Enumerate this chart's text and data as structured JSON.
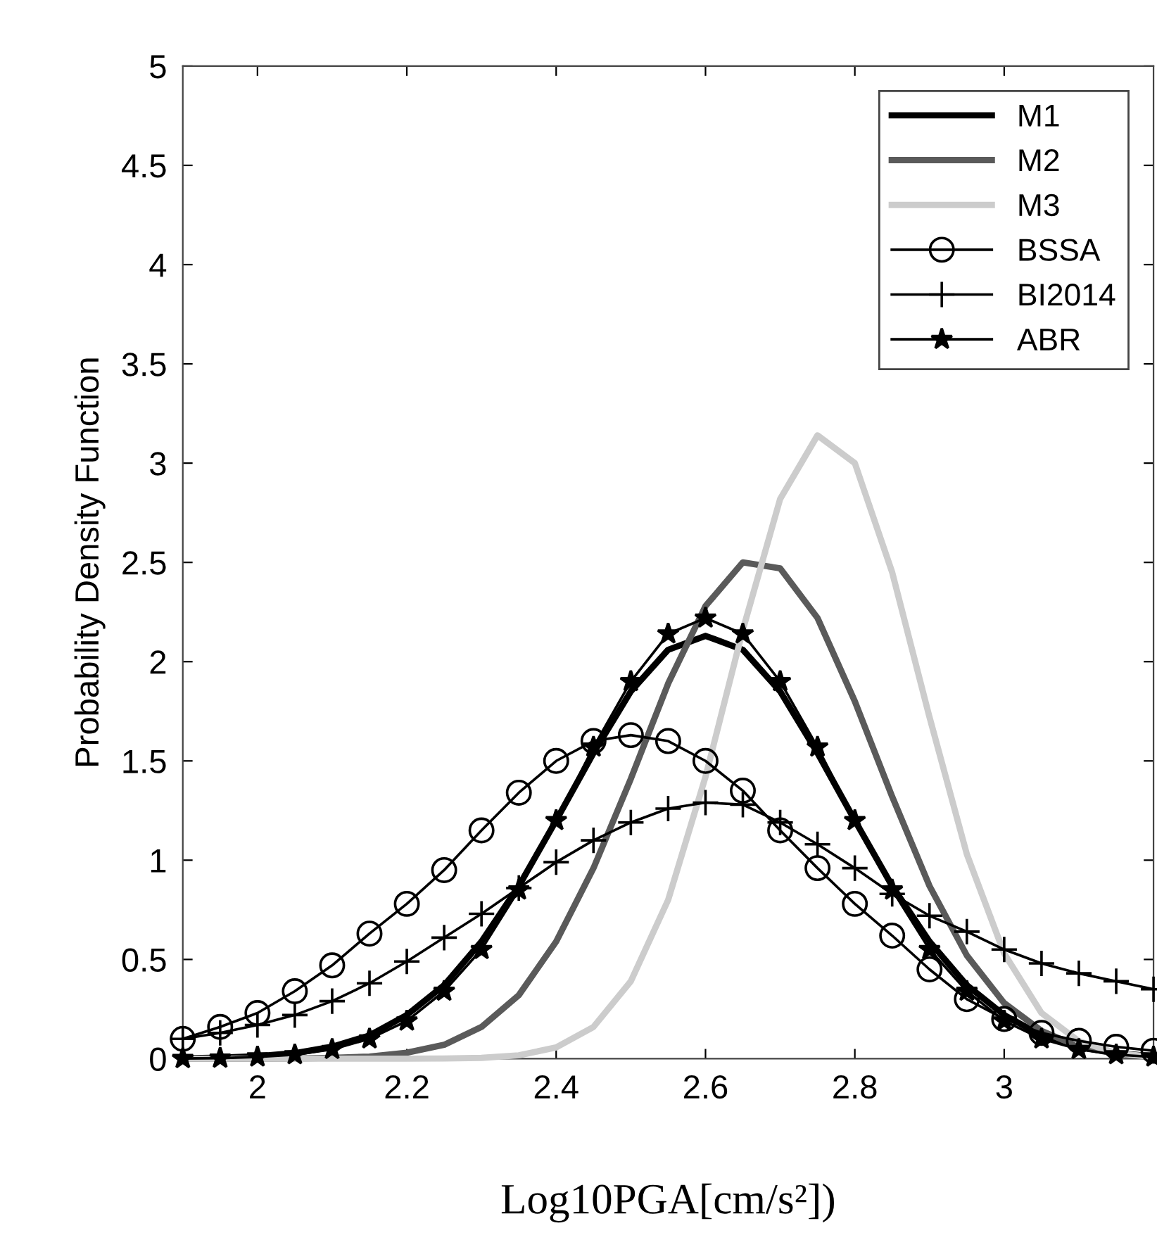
{
  "chart_data": {
    "type": "line",
    "xlabel": "Log10PGA[cm/s²])",
    "ylabel": "Probability Density Function",
    "x": [
      1.9,
      1.95,
      2.0,
      2.05,
      2.1,
      2.15,
      2.2,
      2.25,
      2.3,
      2.35,
      2.4,
      2.45,
      2.5,
      2.55,
      2.6,
      2.65,
      2.7,
      2.75,
      2.8,
      2.85,
      2.9,
      2.95,
      3.0,
      3.05,
      3.1,
      3.15,
      3.2
    ],
    "xlim": [
      1.9,
      3.2
    ],
    "xticks": [
      2,
      2.2,
      2.4,
      2.6,
      2.8,
      3
    ],
    "ylim": [
      0,
      5
    ],
    "yticks": [
      0,
      0.5,
      1,
      1.5,
      2,
      2.5,
      3,
      3.5,
      4,
      4.5,
      5
    ],
    "grid": false,
    "legend": "top right",
    "line_style": "solid",
    "series": [
      {
        "name": "M1",
        "color": "#000000",
        "marker": "none",
        "values": [
          0.002,
          0.005,
          0.012,
          0.028,
          0.06,
          0.117,
          0.22,
          0.37,
          0.59,
          0.87,
          1.2,
          1.54,
          1.85,
          2.06,
          2.13,
          2.06,
          1.85,
          1.54,
          1.2,
          0.87,
          0.59,
          0.37,
          0.22,
          0.117,
          0.06,
          0.028,
          0.012
        ]
      },
      {
        "name": "M2",
        "color": "#5a5a5a",
        "marker": "none",
        "values": [
          0,
          0,
          0,
          0.001,
          0.004,
          0.011,
          0.03,
          0.07,
          0.16,
          0.32,
          0.59,
          0.96,
          1.41,
          1.89,
          2.28,
          2.5,
          2.47,
          2.22,
          1.8,
          1.32,
          0.87,
          0.52,
          0.28,
          0.14,
          0.06,
          0.025,
          0.009
        ]
      },
      {
        "name": "M3",
        "color": "#cccccc",
        "marker": "none",
        "values": [
          0,
          0,
          0,
          0,
          0,
          0,
          0,
          0.001,
          0.004,
          0.017,
          0.057,
          0.16,
          0.39,
          0.8,
          1.42,
          2.16,
          2.82,
          3.14,
          3.0,
          2.45,
          1.72,
          1.03,
          0.53,
          0.23,
          0.088,
          0.028,
          0.008
        ]
      },
      {
        "name": "BSSA",
        "color": "#000000",
        "marker": "circle",
        "values": [
          0.1,
          0.16,
          0.23,
          0.34,
          0.47,
          0.63,
          0.78,
          0.95,
          1.15,
          1.34,
          1.5,
          1.6,
          1.63,
          1.6,
          1.5,
          1.35,
          1.15,
          0.96,
          0.78,
          0.62,
          0.45,
          0.3,
          0.2,
          0.13,
          0.09,
          0.06,
          0.04
        ]
      },
      {
        "name": "BI2014",
        "color": "#000000",
        "marker": "cross",
        "values": [
          0.1,
          0.13,
          0.17,
          0.22,
          0.29,
          0.38,
          0.49,
          0.61,
          0.73,
          0.86,
          0.99,
          1.1,
          1.19,
          1.26,
          1.29,
          1.28,
          1.19,
          1.08,
          0.96,
          0.83,
          0.72,
          0.64,
          0.55,
          0.48,
          0.43,
          0.39,
          0.35
        ]
      },
      {
        "name": "ABR",
        "color": "#000000",
        "marker": "star",
        "values": [
          0.001,
          0.003,
          0.009,
          0.02,
          0.047,
          0.1,
          0.19,
          0.34,
          0.55,
          0.85,
          1.2,
          1.57,
          1.9,
          2.14,
          2.22,
          2.14,
          1.9,
          1.57,
          1.2,
          0.85,
          0.55,
          0.34,
          0.19,
          0.1,
          0.047,
          0.02,
          0.009
        ]
      }
    ]
  }
}
